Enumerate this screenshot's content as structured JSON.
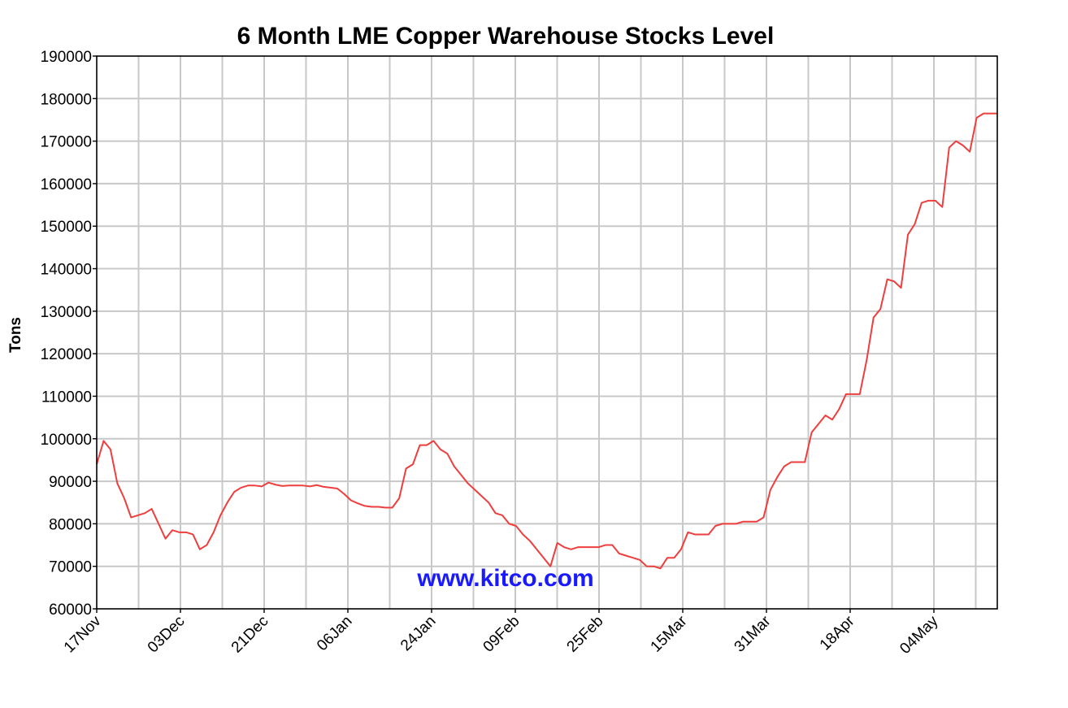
{
  "chart_data": {
    "type": "line",
    "title": "6 Month LME Copper Warehouse Stocks Level",
    "ylabel": "Tons",
    "xlabel": "",
    "ylim": [
      60000,
      190000
    ],
    "yticks": [
      190000,
      180000,
      170000,
      160000,
      150000,
      140000,
      130000,
      120000,
      110000,
      100000,
      90000,
      80000,
      70000,
      60000
    ],
    "xticks": [
      "17Nov",
      "03Dec",
      "21Dec",
      "06Jan",
      "24Jan",
      "09Feb",
      "25Feb",
      "15Mar",
      "31Mar",
      "18Apr",
      "04May"
    ],
    "grid": true,
    "line_color": "#ee3e3e",
    "watermark": "www.kitco.com",
    "series": [
      {
        "values": [
          94000,
          99500,
          97500,
          89500,
          86000,
          81500,
          82000,
          82500,
          83500,
          80000,
          76500,
          78500,
          78000,
          78000,
          77500,
          74000,
          75000,
          78000,
          82000,
          85000,
          87500,
          88500,
          89000,
          89000,
          88800,
          89700,
          89200,
          88900,
          89000,
          89000,
          89000,
          88800,
          89100,
          88700,
          88500,
          88300,
          87000,
          85500,
          84800,
          84200,
          84000,
          84000,
          83800,
          83800,
          86000,
          93000,
          94000,
          98500,
          98500,
          99500,
          97500,
          96500,
          93500,
          91500,
          89500,
          88000,
          86500,
          85000,
          82500,
          82000,
          80000,
          79500,
          77500,
          76000,
          74000,
          72000,
          70000,
          75500,
          74500,
          74000,
          74500,
          74500,
          74500,
          74500,
          75000,
          75000,
          73000,
          72500,
          72000,
          71500,
          70000,
          70000,
          69500,
          72000,
          72000,
          74000,
          78000,
          77500,
          77500,
          77500,
          79500,
          80000,
          80000,
          80000,
          80500,
          80500,
          80500,
          81500,
          88000,
          91000,
          93500,
          94500,
          94500,
          94500,
          101500,
          103500,
          105500,
          104500,
          107000,
          110500,
          110500,
          110500,
          118500,
          128500,
          130500,
          137500,
          137000,
          135500,
          148000,
          150500,
          155500,
          156000,
          156000,
          154500,
          168500,
          170000,
          169000,
          167500,
          175500,
          176500,
          176500,
          176500
        ]
      }
    ]
  }
}
